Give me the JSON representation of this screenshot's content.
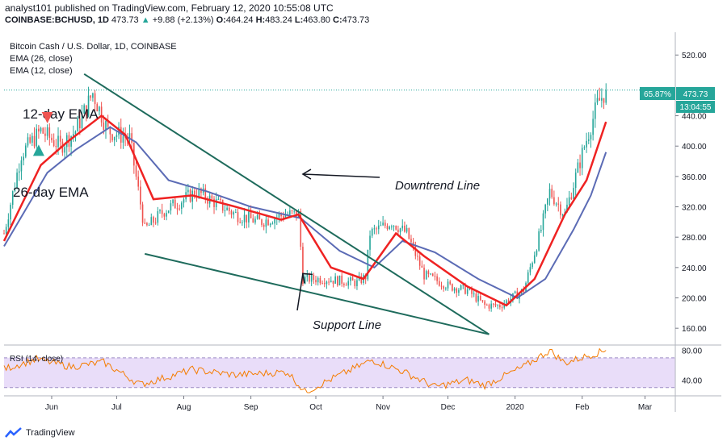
{
  "header": {
    "published": "analyst101 published on TradingView.com, February 12, 2020 10:55:08 UTC",
    "symbol": "COINBASE:BCHUSD, 1D",
    "last": "473.73",
    "change": "+9.88 (+2.13%)",
    "ohlc": {
      "o_label": "O:",
      "o": "464.24",
      "h_label": "H:",
      "h": "483.24",
      "l_label": "L:",
      "l": "463.80",
      "c_label": "C:",
      "c": "473.73"
    }
  },
  "legend": {
    "title": "Bitcoin Cash / U.S. Dollar, 1D, COINBASE",
    "ema26": "EMA (26, close)",
    "ema12": "EMA (12, close)"
  },
  "price_badge": {
    "percent": "65.87%",
    "price": "473.73",
    "countdown": "13:04:55"
  },
  "colors": {
    "candle_up": "#26a69a",
    "candle_down": "#ef5350",
    "ema12": "#ef2222",
    "ema26": "#5b6bb5",
    "trendline": "#1e6b5c",
    "rsi_line": "#f57c00",
    "rsi_band": "#e9ddf9",
    "arrow": "#131722"
  },
  "footer": {
    "brand": "TradingView",
    "logo_icon": "tradingview-logo-icon"
  },
  "chart_data": {
    "type": "candlestick",
    "price_axis": {
      "ticks": [
        160,
        200,
        240,
        280,
        320,
        360,
        400,
        440,
        520
      ],
      "tick_labels": [
        "160.00",
        "200.00",
        "240.00",
        "280.00",
        "320.00",
        "360.00",
        "400.00",
        "440.00",
        "520.00"
      ],
      "range": [
        140,
        550
      ]
    },
    "rsi_axis": {
      "ticks": [
        40,
        80
      ],
      "tick_labels": [
        "40.00",
        "80.00"
      ],
      "range": [
        20,
        85
      ],
      "band": [
        30,
        70
      ]
    },
    "time_axis": {
      "labels": [
        "Jun",
        "Jul",
        "Aug",
        "Sep",
        "Oct",
        "Nov",
        "Dec",
        "2020",
        "Feb",
        "Mar"
      ],
      "dates": [
        "2019-06-01",
        "2019-07-01",
        "2019-08-01",
        "2019-09-01",
        "2019-10-01",
        "2019-11-01",
        "2019-12-01",
        "2020-01-01",
        "2020-02-01",
        "2020-03-01"
      ],
      "range": [
        "2019-05-10",
        "2020-03-15"
      ]
    },
    "close_key_points": [
      {
        "date": "2019-05-10",
        "price": 285
      },
      {
        "date": "2019-05-18",
        "price": 390
      },
      {
        "date": "2019-05-27",
        "price": 420
      },
      {
        "date": "2019-06-05",
        "price": 400
      },
      {
        "date": "2019-06-12",
        "price": 420
      },
      {
        "date": "2019-06-20",
        "price": 470
      },
      {
        "date": "2019-06-27",
        "price": 420
      },
      {
        "date": "2019-07-07",
        "price": 410
      },
      {
        "date": "2019-07-14",
        "price": 290
      },
      {
        "date": "2019-07-23",
        "price": 315
      },
      {
        "date": "2019-08-07",
        "price": 340
      },
      {
        "date": "2019-08-25",
        "price": 310
      },
      {
        "date": "2019-09-05",
        "price": 300
      },
      {
        "date": "2019-09-17",
        "price": 310
      },
      {
        "date": "2019-09-23",
        "price": 310
      },
      {
        "date": "2019-09-25",
        "price": 225
      },
      {
        "date": "2019-10-05",
        "price": 225
      },
      {
        "date": "2019-10-20",
        "price": 220
      },
      {
        "date": "2019-10-24",
        "price": 228
      },
      {
        "date": "2019-10-26",
        "price": 285
      },
      {
        "date": "2019-11-05",
        "price": 300
      },
      {
        "date": "2019-11-12",
        "price": 285
      },
      {
        "date": "2019-11-20",
        "price": 230
      },
      {
        "date": "2019-12-02",
        "price": 215
      },
      {
        "date": "2019-12-10",
        "price": 210
      },
      {
        "date": "2019-12-18",
        "price": 190
      },
      {
        "date": "2019-12-25",
        "price": 190
      },
      {
        "date": "2020-01-05",
        "price": 210
      },
      {
        "date": "2020-01-13",
        "price": 290
      },
      {
        "date": "2020-01-17",
        "price": 340
      },
      {
        "date": "2020-01-24",
        "price": 310
      },
      {
        "date": "2020-02-01",
        "price": 390
      },
      {
        "date": "2020-02-08",
        "price": 455
      },
      {
        "date": "2020-02-12",
        "price": 473.73
      }
    ],
    "ema12_points": [
      {
        "date": "2019-05-10",
        "price": 275
      },
      {
        "date": "2019-05-27",
        "price": 375
      },
      {
        "date": "2019-06-08",
        "price": 405
      },
      {
        "date": "2019-06-24",
        "price": 440
      },
      {
        "date": "2019-07-05",
        "price": 415
      },
      {
        "date": "2019-07-18",
        "price": 330
      },
      {
        "date": "2019-08-05",
        "price": 335
      },
      {
        "date": "2019-08-25",
        "price": 320
      },
      {
        "date": "2019-09-15",
        "price": 303
      },
      {
        "date": "2019-09-23",
        "price": 310
      },
      {
        "date": "2019-10-08",
        "price": 240
      },
      {
        "date": "2019-10-23",
        "price": 225
      },
      {
        "date": "2019-11-07",
        "price": 285
      },
      {
        "date": "2019-11-20",
        "price": 255
      },
      {
        "date": "2019-12-10",
        "price": 215
      },
      {
        "date": "2019-12-28",
        "price": 190
      },
      {
        "date": "2020-01-10",
        "price": 225
      },
      {
        "date": "2020-01-24",
        "price": 310
      },
      {
        "date": "2020-02-03",
        "price": 355
      },
      {
        "date": "2020-02-12",
        "price": 432
      }
    ],
    "ema26_points": [
      {
        "date": "2019-05-10",
        "price": 268
      },
      {
        "date": "2019-05-30",
        "price": 365
      },
      {
        "date": "2019-06-12",
        "price": 395
      },
      {
        "date": "2019-06-28",
        "price": 425
      },
      {
        "date": "2019-07-10",
        "price": 405
      },
      {
        "date": "2019-07-25",
        "price": 355
      },
      {
        "date": "2019-08-12",
        "price": 340
      },
      {
        "date": "2019-09-01",
        "price": 320
      },
      {
        "date": "2019-09-24",
        "price": 305
      },
      {
        "date": "2019-10-12",
        "price": 262
      },
      {
        "date": "2019-10-28",
        "price": 240
      },
      {
        "date": "2019-11-10",
        "price": 275
      },
      {
        "date": "2019-11-25",
        "price": 260
      },
      {
        "date": "2019-12-15",
        "price": 225
      },
      {
        "date": "2020-01-02",
        "price": 200
      },
      {
        "date": "2020-01-15",
        "price": 225
      },
      {
        "date": "2020-01-28",
        "price": 290
      },
      {
        "date": "2020-02-05",
        "price": 335
      },
      {
        "date": "2020-02-12",
        "price": 392
      }
    ],
    "rsi_points": [
      {
        "date": "2019-05-10",
        "value": 55
      },
      {
        "date": "2019-05-25",
        "value": 68
      },
      {
        "date": "2019-06-10",
        "value": 58
      },
      {
        "date": "2019-06-25",
        "value": 64
      },
      {
        "date": "2019-07-12",
        "value": 34
      },
      {
        "date": "2019-08-05",
        "value": 54
      },
      {
        "date": "2019-08-25",
        "value": 47
      },
      {
        "date": "2019-09-18",
        "value": 51
      },
      {
        "date": "2019-09-26",
        "value": 24
      },
      {
        "date": "2019-10-10",
        "value": 44
      },
      {
        "date": "2019-10-27",
        "value": 67
      },
      {
        "date": "2019-11-10",
        "value": 52
      },
      {
        "date": "2019-11-25",
        "value": 31
      },
      {
        "date": "2019-12-10",
        "value": 40
      },
      {
        "date": "2019-12-18",
        "value": 33
      },
      {
        "date": "2020-01-05",
        "value": 58
      },
      {
        "date": "2020-01-17",
        "value": 80
      },
      {
        "date": "2020-01-24",
        "value": 63
      },
      {
        "date": "2020-02-05",
        "value": 74
      },
      {
        "date": "2020-02-12",
        "value": 80
      }
    ],
    "rsi_label": "RSI (14, close)",
    "current_price": 473.73,
    "annotations": [
      {
        "text": "12-day EMA",
        "arrow": "down",
        "at": {
          "date": "2019-05-30",
          "price": 430
        }
      },
      {
        "text": "26-day EMA",
        "arrow": "up",
        "at": {
          "date": "2019-05-26",
          "price": 402
        }
      },
      {
        "text": "Downtrend Line",
        "arrow_to": {
          "date": "2019-09-25",
          "price": 363
        }
      },
      {
        "text": "Support Line",
        "arrow_to": {
          "date": "2019-09-25",
          "price": 232
        }
      }
    ],
    "trendlines": [
      {
        "name": "downtrend",
        "from": {
          "date": "2019-06-16",
          "price": 495
        },
        "to": {
          "date": "2019-12-20",
          "price": 152
        }
      },
      {
        "name": "support",
        "from": {
          "date": "2019-07-14",
          "price": 258
        },
        "to": {
          "date": "2019-12-20",
          "price": 152
        }
      }
    ]
  }
}
